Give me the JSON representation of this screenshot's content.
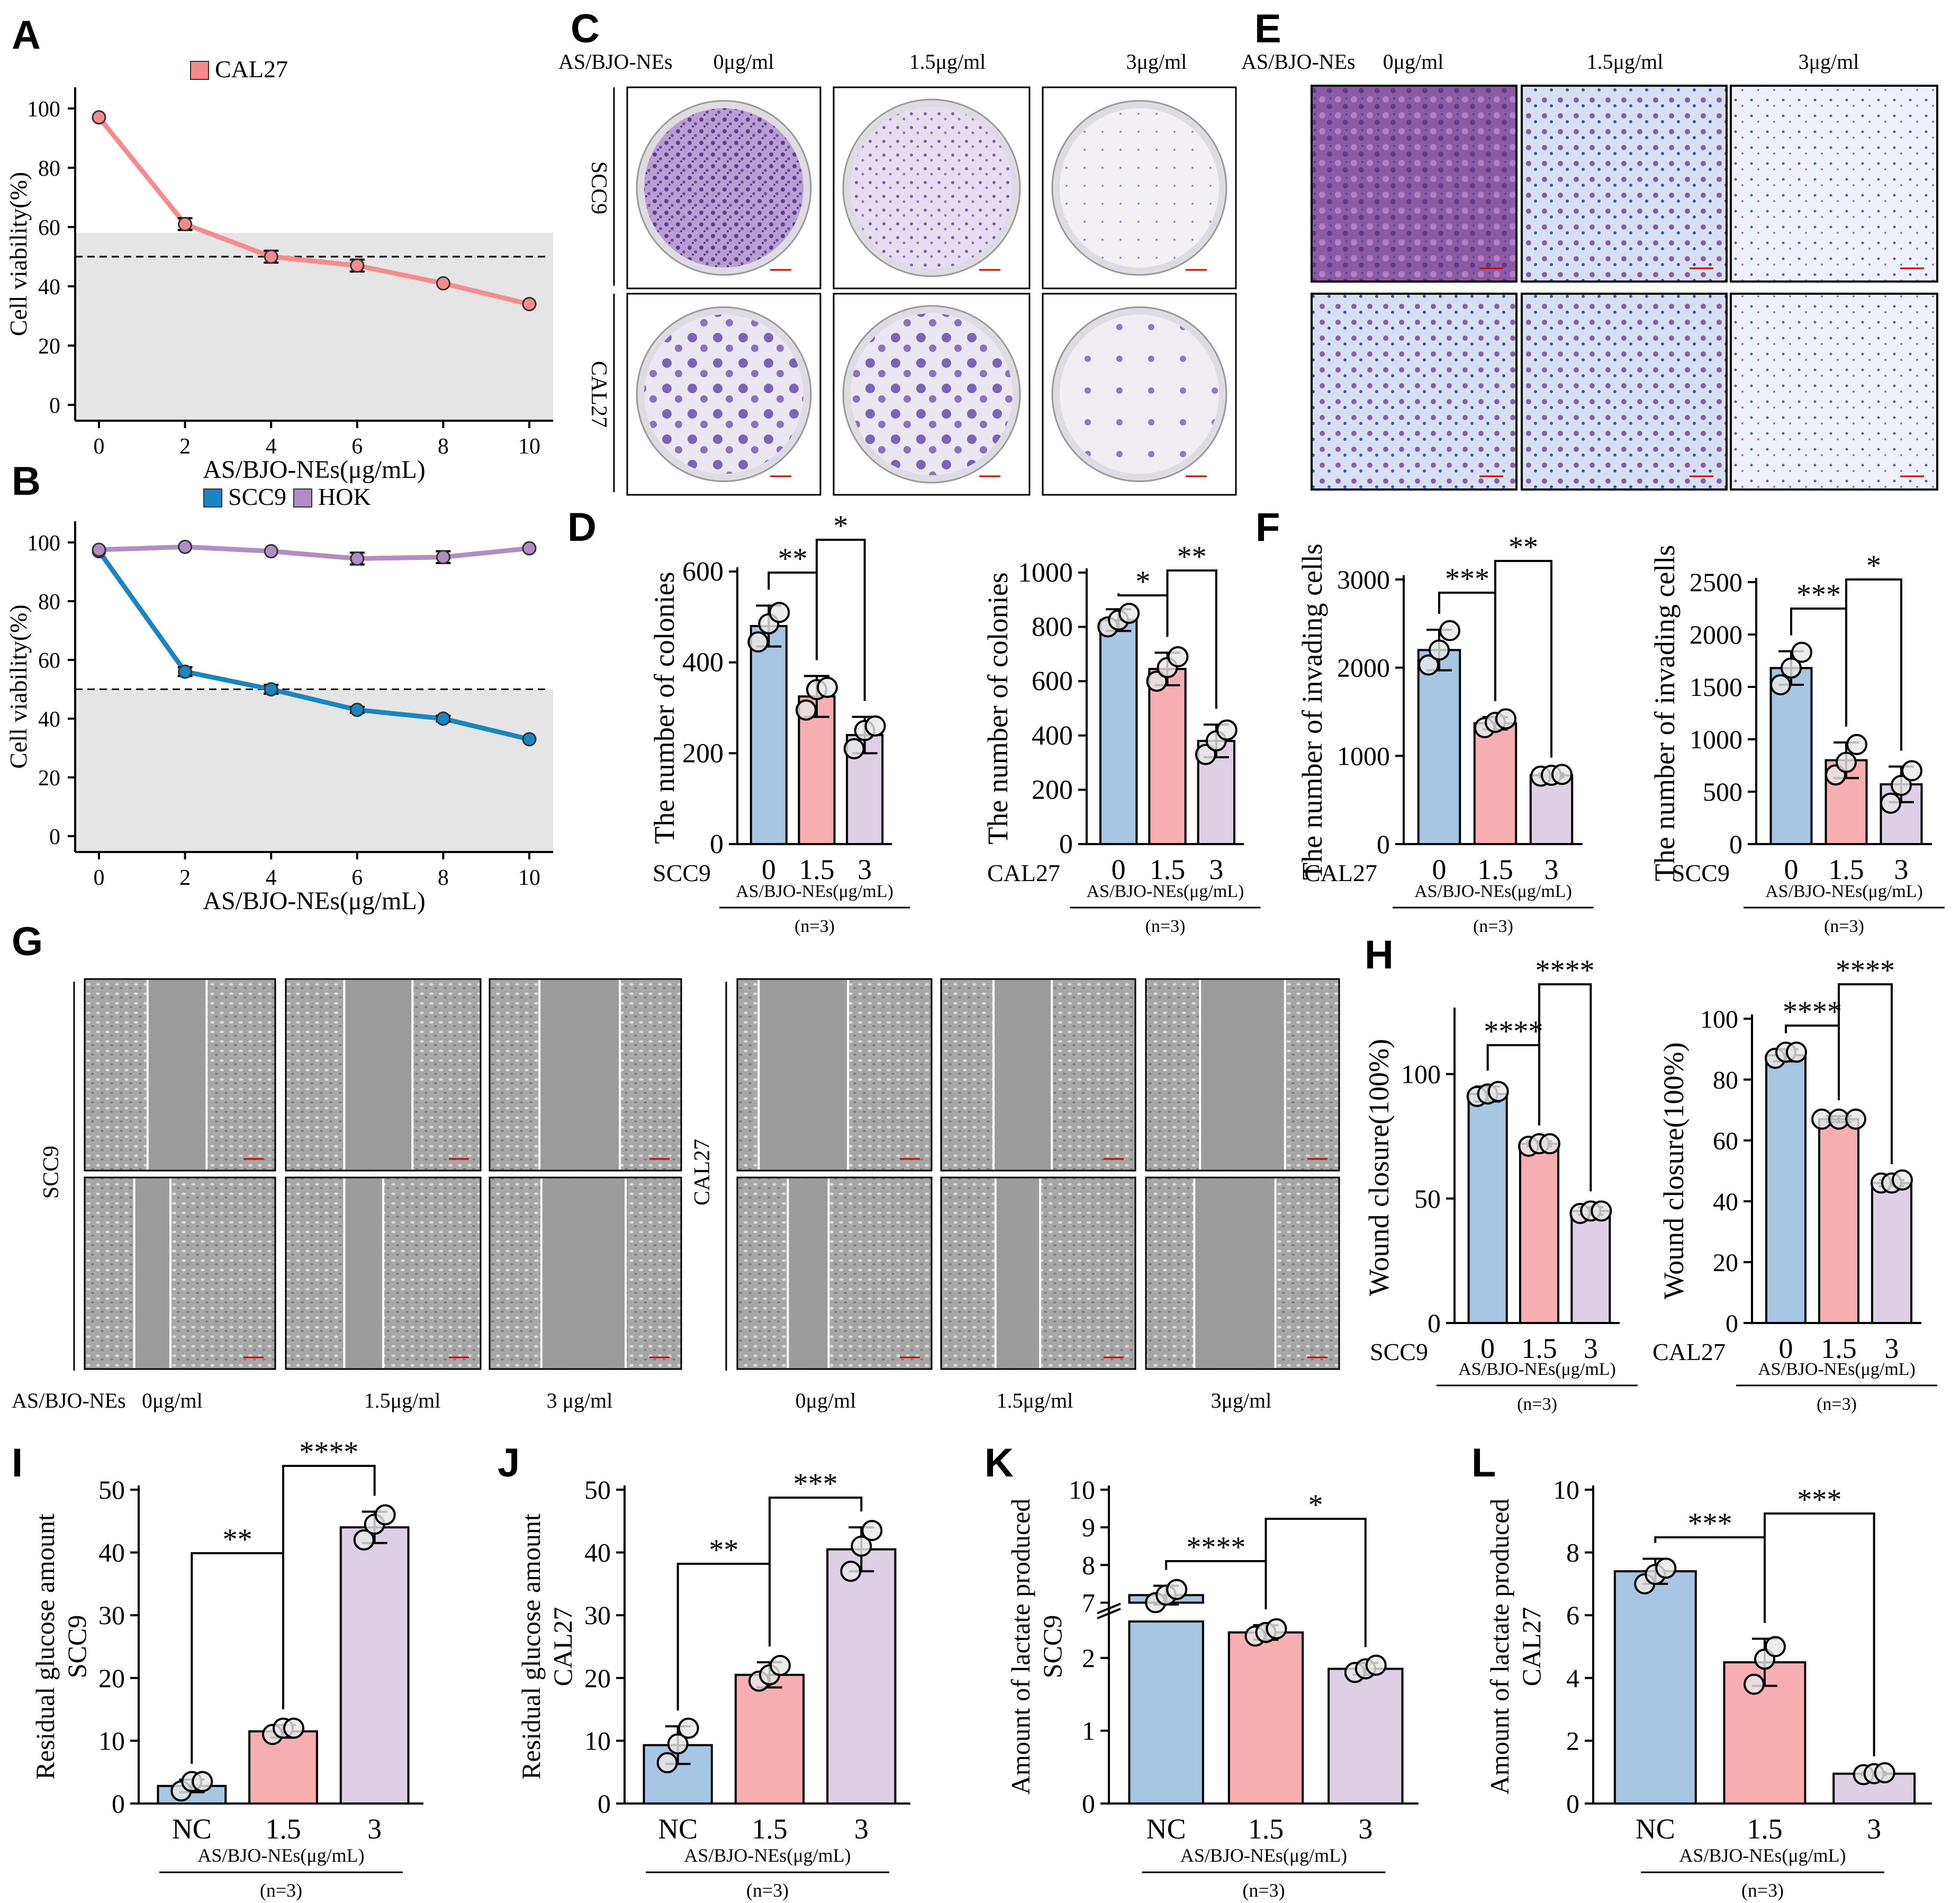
{
  "panels": {
    "A": {
      "letter": "A"
    },
    "B": {
      "letter": "B"
    },
    "C": {
      "letter": "C"
    },
    "D": {
      "letter": "D"
    },
    "E": {
      "letter": "E"
    },
    "F": {
      "letter": "F"
    },
    "G": {
      "letter": "G"
    },
    "H": {
      "letter": "H"
    },
    "I": {
      "letter": "I"
    },
    "J": {
      "letter": "J"
    },
    "K": {
      "letter": "K"
    },
    "L": {
      "letter": "L"
    }
  },
  "colors": {
    "blue": "#a6c6e3",
    "pink": "#f6aeb0",
    "lilac": "#ddd0e5",
    "cal27": "#f78a8c",
    "scc9": "#1a86c1",
    "hok": "#b08dc4",
    "shade": "#e5e5e5"
  },
  "conditions": {
    "treatment": "AS/BJO-NEs",
    "dose0": "0μg/ml",
    "dose15": "1.5μg/ml",
    "dose3": "3μg/ml",
    "dose3sp": "3 μg/ml",
    "scc9": "SCC9",
    "cal27": "CAL27"
  },
  "chart_data": [
    {
      "id": "A",
      "type": "line",
      "xlabel": "AS/BJO-NEs(μg/mL)",
      "ylabel": "Cell viability(%)",
      "x": [
        0,
        2,
        4,
        6,
        8,
        10
      ],
      "xlim": [
        0,
        10
      ],
      "ylim": [
        0,
        100
      ],
      "xticks": [
        0,
        2,
        4,
        6,
        8,
        10
      ],
      "yticks": [
        0,
        20,
        40,
        60,
        80,
        100
      ],
      "reference_line": 50,
      "shaded_below": 58,
      "series": [
        {
          "name": "CAL27",
          "color": "#f78a8c",
          "values": [
            97,
            61,
            50,
            47,
            41,
            34
          ],
          "err": [
            0,
            2,
            2,
            2,
            0,
            0
          ]
        }
      ]
    },
    {
      "id": "B",
      "type": "line",
      "xlabel": "AS/BJO-NEs(μg/mL)",
      "ylabel": "Cell viability(%)",
      "x": [
        0,
        2,
        4,
        6,
        8,
        10
      ],
      "xlim": [
        0,
        10
      ],
      "ylim": [
        0,
        100
      ],
      "xticks": [
        0,
        2,
        4,
        6,
        8,
        10
      ],
      "yticks": [
        0,
        20,
        40,
        60,
        80,
        100
      ],
      "reference_line": 50,
      "shaded_below": 50,
      "series": [
        {
          "name": "SCC9",
          "color": "#1a86c1",
          "values": [
            97,
            56,
            50,
            43,
            40,
            33
          ],
          "err": [
            0,
            1.5,
            1.5,
            1,
            1,
            0
          ]
        },
        {
          "name": "HOK",
          "color": "#b08dc4",
          "values": [
            97.5,
            98.5,
            97,
            94.5,
            95,
            98
          ],
          "err": [
            0,
            0,
            0,
            2,
            2,
            0
          ]
        }
      ]
    },
    {
      "id": "D1",
      "type": "bar",
      "ylabel": "The number of colonies",
      "group": "SCC9",
      "categories": [
        "0",
        "1.5",
        "3"
      ],
      "xlabel": "AS/BJO-NEs(μg/mL)",
      "n": "(n=3)",
      "ylim": [
        0,
        600
      ],
      "yticks": [
        0,
        200,
        400,
        600
      ],
      "values": [
        480,
        325,
        240
      ],
      "err": [
        45,
        45,
        40
      ],
      "points": [
        [
          445,
          485,
          510
        ],
        [
          295,
          340,
          345
        ],
        [
          210,
          250,
          260
        ]
      ],
      "sig": [
        {
          "from": 0,
          "to": 1,
          "label": "**"
        },
        {
          "from": 1,
          "to": 2,
          "label": "*"
        }
      ]
    },
    {
      "id": "D2",
      "type": "bar",
      "ylabel": "The number of colonies",
      "group": "CAL27",
      "categories": [
        "0",
        "1.5",
        "3"
      ],
      "xlabel": "AS/BJO-NEs(μg/mL)",
      "n": "(n=3)",
      "ylim": [
        0,
        1000
      ],
      "yticks": [
        0,
        200,
        400,
        600,
        800,
        1000
      ],
      "values": [
        825,
        645,
        380
      ],
      "err": [
        40,
        60,
        60
      ],
      "points": [
        [
          800,
          825,
          850
        ],
        [
          600,
          650,
          690
        ],
        [
          330,
          380,
          420
        ]
      ],
      "sig": [
        {
          "from": 0,
          "to": 1,
          "label": "*"
        },
        {
          "from": 1,
          "to": 2,
          "label": "**"
        }
      ]
    },
    {
      "id": "F1",
      "type": "bar",
      "ylabel": "The number of invading cells",
      "group": "CAL27",
      "categories": [
        "0",
        "1.5",
        "3"
      ],
      "xlabel": "AS/BJO-NEs(μg/mL)",
      "n": "(n=3)",
      "ylim": [
        0,
        3000
      ],
      "yticks": [
        0,
        1000,
        2000,
        3000
      ],
      "values": [
        2200,
        1370,
        780
      ],
      "err": [
        230,
        70,
        20
      ],
      "points": [
        [
          2030,
          2200,
          2420
        ],
        [
          1320,
          1380,
          1420
        ],
        [
          770,
          780,
          790
        ]
      ],
      "sig": [
        {
          "from": 0,
          "to": 1,
          "label": "***"
        },
        {
          "from": 1,
          "to": 2,
          "label": "**"
        }
      ]
    },
    {
      "id": "F2",
      "type": "bar",
      "ylabel": "The number of invading cells",
      "group": "SCC9",
      "categories": [
        "0",
        "1.5",
        "3"
      ],
      "xlabel": "AS/BJO-NEs(μg/mL)",
      "n": "(n=3)",
      "ylim": [
        0,
        2500
      ],
      "yticks": [
        0,
        500,
        1000,
        1500,
        2000,
        2500
      ],
      "values": [
        1680,
        800,
        570
      ],
      "err": [
        160,
        170,
        170
      ],
      "points": [
        [
          1520,
          1680,
          1830
        ],
        [
          660,
          780,
          950
        ],
        [
          390,
          560,
          700
        ]
      ],
      "sig": [
        {
          "from": 0,
          "to": 1,
          "label": "***"
        },
        {
          "from": 1,
          "to": 2,
          "label": "*"
        }
      ]
    },
    {
      "id": "H1",
      "type": "bar",
      "ylabel": "Wound closure(100%)",
      "group": "SCC9",
      "categories": [
        "0",
        "1.5",
        "3"
      ],
      "xlabel": "AS/BJO-NEs(μg/mL)",
      "n": "(n=3)",
      "ylim": [
        0,
        125
      ],
      "yticks": [
        0,
        50,
        100
      ],
      "values": [
        92,
        72,
        45
      ],
      "err": [
        3,
        1,
        1.5
      ],
      "points": [
        [
          91,
          92,
          93
        ],
        [
          71,
          72,
          72
        ],
        [
          44,
          45,
          45
        ]
      ],
      "sig": [
        {
          "from": 0,
          "to": 1,
          "label": "****"
        },
        {
          "from": 1,
          "to": 2,
          "label": "****"
        }
      ]
    },
    {
      "id": "H2",
      "type": "bar",
      "ylabel": "Wound closure(100%)",
      "group": "CAL27",
      "categories": [
        "0",
        "1.5",
        "3"
      ],
      "xlabel": "AS/BJO-NEs(μg/mL)",
      "n": "(n=3)",
      "ylim": [
        0,
        100
      ],
      "yticks": [
        0,
        20,
        40,
        60,
        80,
        100
      ],
      "values": [
        88,
        67,
        46
      ],
      "err": [
        2,
        1,
        1
      ],
      "points": [
        [
          87,
          89,
          89
        ],
        [
          67,
          67,
          67
        ],
        [
          46,
          46,
          47
        ]
      ],
      "sig": [
        {
          "from": 0,
          "to": 1,
          "label": "****"
        },
        {
          "from": 1,
          "to": 2,
          "label": "****"
        }
      ]
    },
    {
      "id": "I",
      "type": "bar",
      "ylabel": "Residual glucose amount",
      "ylabel2": "SCC9",
      "categories": [
        "NC",
        "1.5",
        "3"
      ],
      "xlabel": "AS/BJO-NEs(μg/mL)",
      "n": "(n=3)",
      "ylim": [
        0,
        50
      ],
      "yticks": [
        0,
        10,
        20,
        30,
        40,
        50
      ],
      "values": [
        2.8,
        11.5,
        44
      ],
      "err": [
        1,
        1,
        2.5
      ],
      "points": [
        [
          2,
          3.5,
          3.5
        ],
        [
          11,
          12,
          12
        ],
        [
          42,
          44.5,
          46
        ]
      ],
      "sig": [
        {
          "from": 0,
          "to": 1,
          "label": "**"
        },
        {
          "from": 1,
          "to": 2,
          "label": "****"
        }
      ]
    },
    {
      "id": "J",
      "type": "bar",
      "ylabel": "Residual glucose amount",
      "ylabel2": "CAL27",
      "categories": [
        "NC",
        "1.5",
        "3"
      ],
      "xlabel": "AS/BJO-NEs(μg/mL)",
      "n": "(n=3)",
      "ylim": [
        0,
        50
      ],
      "yticks": [
        0,
        10,
        20,
        30,
        40,
        50
      ],
      "values": [
        9.3,
        20.5,
        40.5
      ],
      "err": [
        3,
        2,
        3.5
      ],
      "points": [
        [
          6.5,
          9.5,
          12
        ],
        [
          19.5,
          20.5,
          22
        ],
        [
          37,
          41,
          43.5
        ]
      ],
      "sig": [
        {
          "from": 0,
          "to": 1,
          "label": "**"
        },
        {
          "from": 1,
          "to": 2,
          "label": "***"
        }
      ]
    },
    {
      "id": "K",
      "type": "bar",
      "ylabel": "Amount of lactate produced",
      "ylabel2": "SCC9",
      "categories": [
        "NC",
        "1.5",
        "3"
      ],
      "xlabel": "AS/BJO-NEs(μg/mL)",
      "n": "(n=3)",
      "axis_break": [
        2.5,
        7
      ],
      "ylim": [
        0,
        10
      ],
      "yticks": [
        0,
        1,
        2,
        7,
        8,
        9,
        10
      ],
      "values": [
        7.2,
        2.35,
        1.85
      ],
      "err": [
        0.25,
        0.1,
        0.08
      ],
      "points": [
        [
          7.0,
          7.2,
          7.35
        ],
        [
          2.3,
          2.35,
          2.4
        ],
        [
          1.8,
          1.85,
          1.9
        ]
      ],
      "sig": [
        {
          "from": 0,
          "to": 1,
          "label": "****"
        },
        {
          "from": 1,
          "to": 2,
          "label": "*"
        }
      ]
    },
    {
      "id": "L",
      "type": "bar",
      "ylabel": "Amount of lactate produced",
      "ylabel2": "CAL27",
      "categories": [
        "NC",
        "1.5",
        "3"
      ],
      "xlabel": "AS/BJO-NEs(μg/mL)",
      "n": "(n=3)",
      "ylim": [
        0,
        10
      ],
      "yticks": [
        0,
        2,
        4,
        6,
        8,
        10
      ],
      "values": [
        7.4,
        4.5,
        0.95
      ],
      "err": [
        0.4,
        0.75,
        0.05
      ],
      "points": [
        [
          7.0,
          7.3,
          7.5
        ],
        [
          3.8,
          4.6,
          5.0
        ],
        [
          0.92,
          0.95,
          0.98
        ]
      ],
      "sig": [
        {
          "from": 0,
          "to": 1,
          "label": "***"
        },
        {
          "from": 1,
          "to": 2,
          "label": "***"
        }
      ]
    }
  ]
}
